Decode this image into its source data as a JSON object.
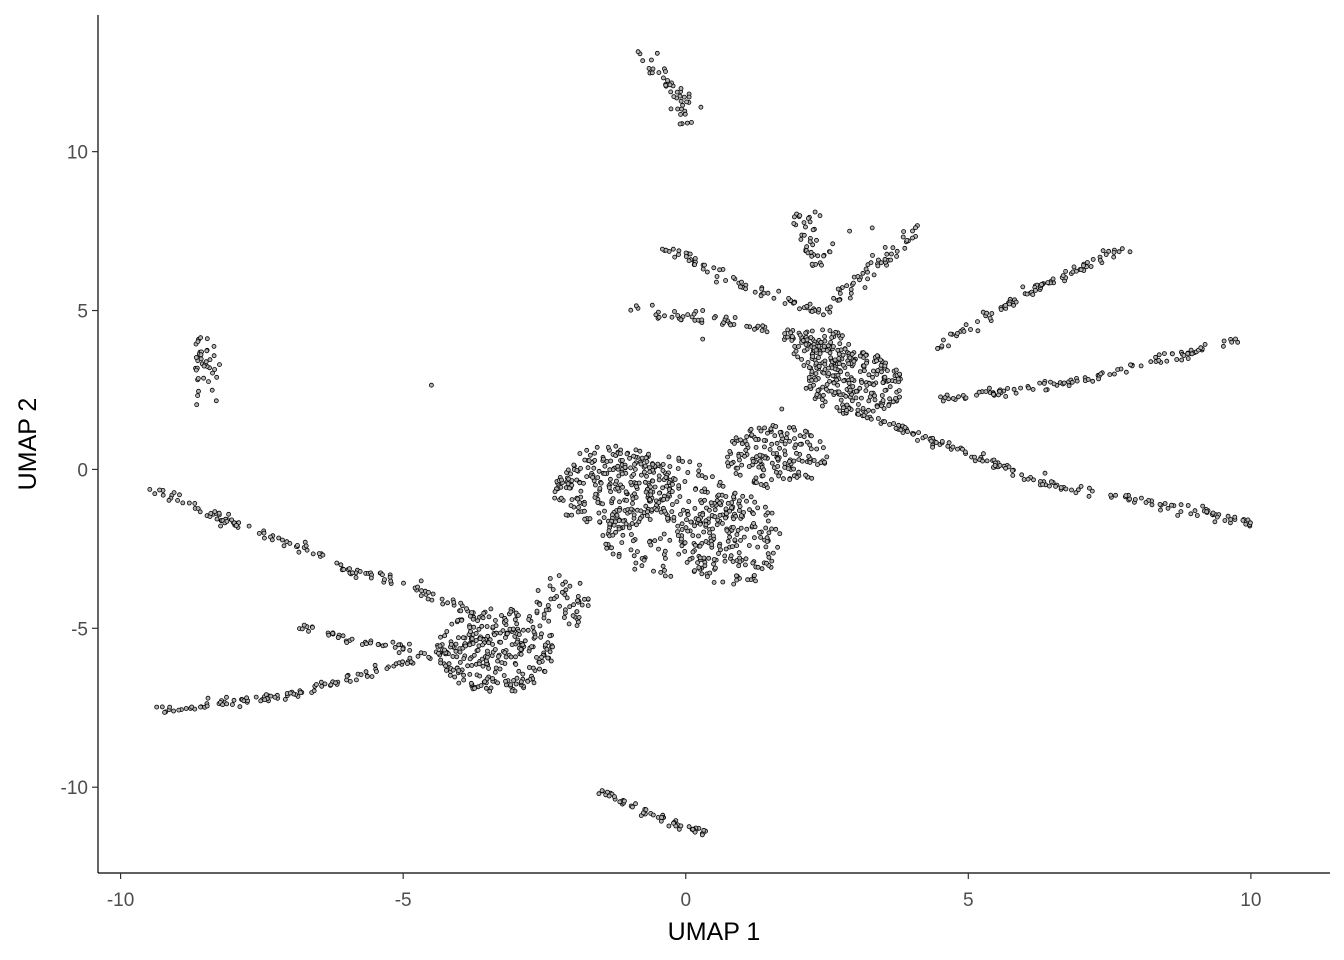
{
  "chart_data": {
    "type": "scatter",
    "title": "",
    "xlabel": "UMAP 1",
    "ylabel": "UMAP 2",
    "xlim": [
      -10.4,
      11.4
    ],
    "ylim": [
      -12.7,
      14.3
    ],
    "xticks": [
      -10,
      -5,
      0,
      5,
      10
    ],
    "xtick_labels": [
      "-10",
      "-5",
      "0",
      "5",
      "10"
    ],
    "yticks": [
      -10,
      -5,
      0,
      5,
      10
    ],
    "ytick_labels": [
      "-10",
      "-5",
      "0",
      "5",
      "10"
    ],
    "grid": false,
    "legend": "none",
    "point_fill": "#b3b3b3",
    "point_stroke": "#000000",
    "segments": [
      {
        "x": [
          -0.8,
          -0.4,
          -0.1,
          0.1
        ],
        "y": [
          13.1,
          12.4,
          11.6,
          10.9
        ],
        "n": 45,
        "jitter": 0.12
      },
      {
        "x": [
          -8.6,
          -8.45
        ],
        "y": [
          4.1,
          2.1
        ],
        "n": 40,
        "jitter": 0.1
      },
      {
        "x": [
          -9.4,
          -8.0,
          -6.4
        ],
        "y": [
          -0.6,
          -1.7,
          -2.7
        ],
        "n": 70,
        "jitter": 0.07
      },
      {
        "x": [
          -6.3,
          -5.0,
          -3.8
        ],
        "y": [
          -3.0,
          -3.6,
          -4.5
        ],
        "n": 55,
        "jitter": 0.08
      },
      {
        "x": [
          -6.8,
          -5.9,
          -4.8
        ],
        "y": [
          -4.9,
          -5.4,
          -5.7
        ],
        "n": 40,
        "jitter": 0.07
      },
      {
        "x": [
          -9.3,
          -7.0,
          -5.0,
          -3.0
        ],
        "y": [
          -7.6,
          -7.1,
          -6.1,
          -5.0
        ],
        "n": 140,
        "jitter": 0.07
      },
      {
        "x": [
          -1.5,
          -0.6,
          0.4
        ],
        "y": [
          -10.1,
          -10.9,
          -11.5
        ],
        "n": 55,
        "jitter": 0.06
      },
      {
        "x": [
          -0.4,
          1.0,
          2.6
        ],
        "y": [
          7.0,
          5.8,
          4.8
        ],
        "n": 70,
        "jitter": 0.08
      },
      {
        "x": [
          -1.0,
          1.5,
          2.8
        ],
        "y": [
          5.1,
          4.4,
          3.6
        ],
        "n": 90,
        "jitter": 0.1
      },
      {
        "x": [
          2.1,
          2.3,
          2.4
        ],
        "y": [
          8.0,
          7.0,
          6.3
        ],
        "n": 40,
        "jitter": 0.12
      },
      {
        "x": [
          2.6,
          3.5,
          4.2
        ],
        "y": [
          5.2,
          6.6,
          7.7
        ],
        "n": 55,
        "jitter": 0.1
      },
      {
        "x": [
          4.3,
          6.0,
          7.8
        ],
        "y": [
          3.7,
          5.5,
          7.0
        ],
        "n": 90,
        "jitter": 0.07
      },
      {
        "x": [
          4.5,
          7.0,
          9.8
        ],
        "y": [
          2.2,
          2.8,
          4.1
        ],
        "n": 110,
        "jitter": 0.07
      },
      {
        "x": [
          3.0,
          6.5,
          10.1
        ],
        "y": [
          1.8,
          -0.5,
          -1.7
        ],
        "n": 160,
        "jitter": 0.07
      }
    ],
    "blobs": [
      {
        "cx": -3.35,
        "cy": -5.7,
        "rx": 1.05,
        "ry": 1.35,
        "n": 270
      },
      {
        "cx": -2.2,
        "cy": -4.2,
        "rx": 0.5,
        "ry": 0.9,
        "n": 50
      },
      {
        "cx": -1.3,
        "cy": -0.6,
        "rx": 1.1,
        "ry": 1.35,
        "n": 260
      },
      {
        "cx": -0.3,
        "cy": -1.5,
        "rx": 1.3,
        "ry": 1.9,
        "n": 200
      },
      {
        "cx": 0.8,
        "cy": -2.2,
        "rx": 0.9,
        "ry": 1.5,
        "n": 190
      },
      {
        "cx": 1.6,
        "cy": 0.4,
        "rx": 0.9,
        "ry": 1.0,
        "n": 170
      },
      {
        "cx": 3.0,
        "cy": 2.7,
        "rx": 0.9,
        "ry": 1.0,
        "n": 220
      },
      {
        "cx": 2.4,
        "cy": 3.8,
        "rx": 0.5,
        "ry": 0.7,
        "n": 70
      }
    ],
    "outliers": [
      {
        "x": -4.5,
        "y": 2.65
      },
      {
        "x": -8.25,
        "y": 3.3
      },
      {
        "x": -8.3,
        "y": 2.9
      },
      {
        "x": 2.9,
        "y": 7.5
      },
      {
        "x": 3.3,
        "y": 7.6
      },
      {
        "x": 2.6,
        "y": 7.1
      },
      {
        "x": 0.3,
        "y": 5.0
      },
      {
        "x": 0.3,
        "y": 4.1
      },
      {
        "x": -1.9,
        "y": -4.8
      },
      {
        "x": 1.7,
        "y": 1.9
      }
    ]
  }
}
